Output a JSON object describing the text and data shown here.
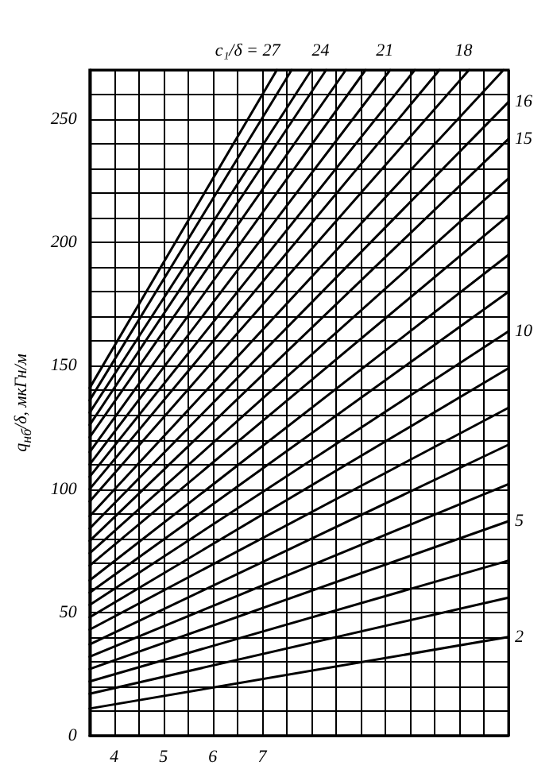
{
  "chart_data": {
    "type": "line",
    "ylabel": "q$_{нб}$/δ, мкГн/м",
    "xlim": [
      3.5,
      12
    ],
    "ylim": [
      0,
      270
    ],
    "xticks": [
      {
        "value": 3.5,
        "label": null
      },
      4,
      {
        "value": 4.5,
        "label": null
      },
      5,
      {
        "value": 5.5,
        "label": null
      },
      6,
      {
        "value": 6.5,
        "label": null
      },
      7,
      {
        "value": 7.5,
        "label": null
      },
      {
        "value": 8,
        "label": null
      },
      {
        "value": 8.5,
        "label": null
      },
      {
        "value": 9,
        "label": null
      },
      {
        "value": 9.5,
        "label": null
      },
      {
        "value": 10,
        "label": null
      },
      {
        "value": 10.5,
        "label": null
      },
      {
        "value": 11,
        "label": null
      },
      {
        "value": 11.5,
        "label": null
      },
      {
        "value": 12,
        "label": null
      }
    ],
    "yticks": [
      0,
      {
        "value": 10,
        "label": null
      },
      {
        "value": 20,
        "label": null
      },
      {
        "value": 30,
        "label": null
      },
      {
        "value": 40,
        "label": null
      },
      50,
      {
        "value": 60,
        "label": null
      },
      {
        "value": 70,
        "label": null
      },
      {
        "value": 80,
        "label": null
      },
      {
        "value": 90,
        "label": null
      },
      100,
      {
        "value": 110,
        "label": null
      },
      {
        "value": 120,
        "label": null
      },
      {
        "value": 130,
        "label": null
      },
      {
        "value": 140,
        "label": null
      },
      150,
      {
        "value": 160,
        "label": null
      },
      {
        "value": 170,
        "label": null
      },
      {
        "value": 180,
        "label": null
      },
      {
        "value": 190,
        "label": null
      },
      200,
      {
        "value": 210,
        "label": null
      },
      {
        "value": 220,
        "label": null
      },
      {
        "value": 230,
        "label": null
      },
      {
        "value": 240,
        "label": null
      },
      250,
      {
        "value": 260,
        "label": null
      },
      {
        "value": 270,
        "label": null
      }
    ],
    "grid": true,
    "legend": false,
    "marker": "none",
    "line_style": "solid",
    "series": [
      {
        "name": "2",
        "color": "#000000",
        "x": [
          3.5,
          12
        ],
        "values": [
          11,
          40
        ]
      },
      {
        "color": "#000000",
        "x": [
          3.5,
          12
        ],
        "values": [
          17,
          56
        ]
      },
      {
        "color": "#000000",
        "x": [
          3.5,
          12
        ],
        "values": [
          22,
          71
        ]
      },
      {
        "name": "5",
        "color": "#000000",
        "x": [
          3.5,
          12
        ],
        "values": [
          27,
          87
        ]
      },
      {
        "color": "#000000",
        "x": [
          3.5,
          12
        ],
        "values": [
          32,
          102
        ]
      },
      {
        "color": "#000000",
        "x": [
          3.5,
          12
        ],
        "values": [
          37,
          118
        ]
      },
      {
        "color": "#000000",
        "x": [
          3.5,
          12
        ],
        "values": [
          43,
          133
        ]
      },
      {
        "color": "#000000",
        "x": [
          3.5,
          12
        ],
        "values": [
          48,
          149
        ]
      },
      {
        "name": "10",
        "color": "#000000",
        "x": [
          3.5,
          12
        ],
        "values": [
          53,
          164
        ]
      },
      {
        "color": "#000000",
        "x": [
          3.5,
          12
        ],
        "values": [
          58,
          180
        ]
      },
      {
        "color": "#000000",
        "x": [
          3.5,
          12
        ],
        "values": [
          63,
          195
        ]
      },
      {
        "color": "#000000",
        "x": [
          3.5,
          12
        ],
        "values": [
          69,
          211
        ]
      },
      {
        "color": "#000000",
        "x": [
          3.5,
          12
        ],
        "values": [
          74,
          226
        ]
      },
      {
        "name": "15",
        "color": "#000000",
        "x": [
          3.5,
          12
        ],
        "values": [
          79,
          242
        ]
      },
      {
        "name": "16",
        "color": "#000000",
        "x": [
          3.5,
          12
        ],
        "values": [
          84,
          257
        ]
      },
      {
        "color": "#000000",
        "x": [
          3.5,
          11.9
        ],
        "values": [
          89,
          270
        ]
      },
      {
        "name": "18",
        "color": "#000000",
        "x": [
          3.5,
          11.2
        ],
        "values": [
          95,
          270
        ]
      },
      {
        "color": "#000000",
        "x": [
          3.5,
          10.6
        ],
        "values": [
          100,
          270
        ]
      },
      {
        "color": "#000000",
        "x": [
          3.5,
          10.1
        ],
        "values": [
          105,
          270
        ]
      },
      {
        "name": "21",
        "color": "#000000",
        "x": [
          3.5,
          9.6
        ],
        "values": [
          110,
          270
        ]
      },
      {
        "color": "#000000",
        "x": [
          3.5,
          9.1
        ],
        "values": [
          115,
          270
        ]
      },
      {
        "color": "#000000",
        "x": [
          3.5,
          8.7
        ],
        "values": [
          121,
          270
        ]
      },
      {
        "name": "24",
        "color": "#000000",
        "x": [
          3.5,
          8.3
        ],
        "values": [
          126,
          270
        ]
      },
      {
        "color": "#000000",
        "x": [
          3.5,
          8.0
        ],
        "values": [
          131,
          270
        ]
      },
      {
        "color": "#000000",
        "x": [
          3.5,
          7.6
        ],
        "values": [
          136,
          270
        ]
      },
      {
        "name": "c₁/δ = 27",
        "color": "#000000",
        "x": [
          3.5,
          7.3
        ],
        "values": [
          141,
          270
        ]
      }
    ]
  }
}
